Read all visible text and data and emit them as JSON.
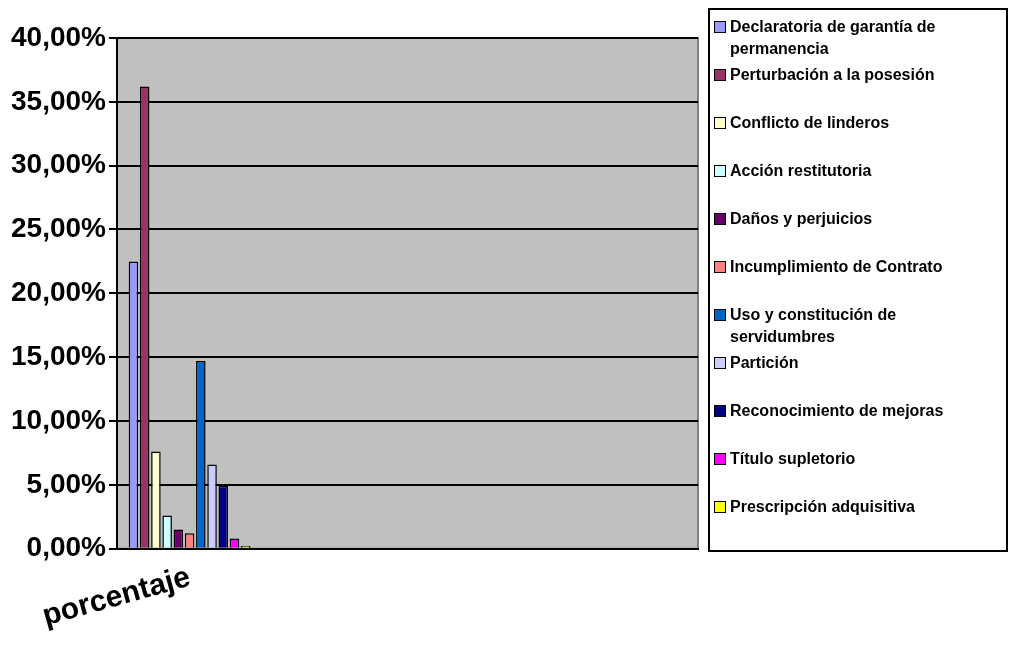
{
  "chart_data": {
    "type": "bar",
    "categories": [
      "porcentaje",
      null,
      null,
      null
    ],
    "series": [
      {
        "name": "Declaratoria de garantía de permanencia",
        "color": "#9999ff",
        "values": [
          22.5,
          null,
          null,
          null
        ]
      },
      {
        "name": "Perturbación a la posesión",
        "color": "#993366",
        "values": [
          36.2,
          null,
          null,
          null
        ]
      },
      {
        "name": "Conflicto de linderos",
        "color": "#ffffcc",
        "values": [
          7.6,
          null,
          null,
          null
        ]
      },
      {
        "name": "Acción restitutoria",
        "color": "#ccffff",
        "values": [
          2.6,
          null,
          null,
          null
        ]
      },
      {
        "name": "Daños y perjuicios",
        "color": "#660066",
        "values": [
          1.5,
          null,
          null,
          null
        ]
      },
      {
        "name": "Incumplimiento de Contrato",
        "color": "#ff8080",
        "values": [
          1.2,
          null,
          null,
          null
        ]
      },
      {
        "name": "Uso y constitución de servidumbres",
        "color": "#0066cc",
        "values": [
          14.7,
          null,
          null,
          null
        ]
      },
      {
        "name": "Partición",
        "color": "#ccccff",
        "values": [
          6.6,
          null,
          null,
          null
        ]
      },
      {
        "name": "Reconocimiento de mejoras",
        "color": "#000080",
        "values": [
          4.9,
          null,
          null,
          null
        ]
      },
      {
        "name": "Título supletorio",
        "color": "#ff00ff",
        "values": [
          0.8,
          null,
          null,
          null
        ]
      },
      {
        "name": "Prescripción adquisitiva",
        "color": "#ffff00",
        "values": [
          0.2,
          null,
          null,
          null
        ]
      }
    ],
    "ylim": [
      0,
      40
    ],
    "yticks": [
      {
        "value": 0,
        "label": "0,00%"
      },
      {
        "value": 5,
        "label": "5,00%"
      },
      {
        "value": 10,
        "label": "10,00%"
      },
      {
        "value": 15,
        "label": "15,00%"
      },
      {
        "value": 20,
        "label": "20,00%"
      },
      {
        "value": 25,
        "label": "25,00%"
      },
      {
        "value": 30,
        "label": "30,00%"
      },
      {
        "value": 35,
        "label": "35,00%"
      },
      {
        "value": 40,
        "label": "40,00%"
      }
    ],
    "grid": "y",
    "legend": "right"
  }
}
